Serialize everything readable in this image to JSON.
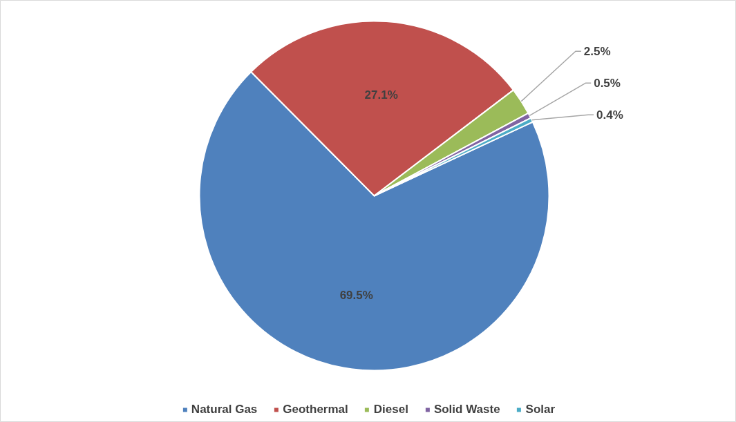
{
  "chart_data": {
    "type": "pie",
    "categories": [
      "Natural Gas",
      "Geothermal",
      "Diesel",
      "Solid Waste",
      "Solar"
    ],
    "values": [
      69.5,
      27.1,
      2.5,
      0.5,
      0.4
    ],
    "colors": [
      "#4f81bd",
      "#c0504d",
      "#9bbb59",
      "#8064a2",
      "#4bacc6"
    ],
    "value_labels": [
      "69.5%",
      "27.1%",
      "2.5%",
      "0.5%",
      "0.4%"
    ],
    "legend": "bottom"
  }
}
